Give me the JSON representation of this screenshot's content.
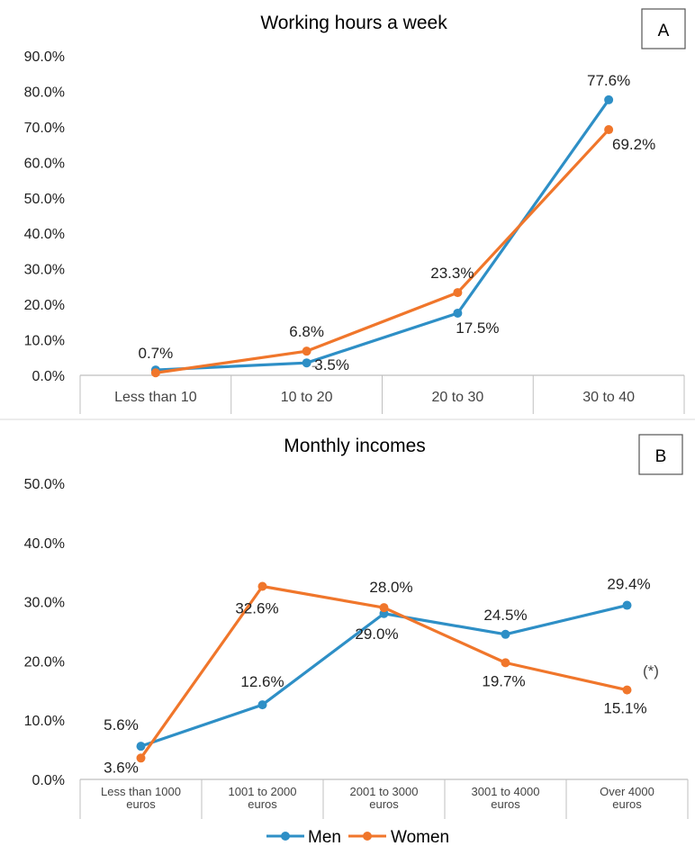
{
  "colors": {
    "men": "#2E8FC6",
    "women": "#F0762B",
    "axis": "#BFBFBF",
    "text": "#222222"
  },
  "legend": {
    "position": "bottom",
    "items": [
      {
        "label": "Men"
      },
      {
        "label": "Women"
      }
    ]
  },
  "chart_data": [
    {
      "type": "line",
      "title": "Working hours a week",
      "panel_label": "A",
      "categories": [
        "Less than 10",
        "10 to 20",
        "20 to 30",
        "30 to 40"
      ],
      "ylim": [
        0,
        90
      ],
      "yticks": [
        "0.0%",
        "10.0%",
        "20.0%",
        "30.0%",
        "40.0%",
        "50.0%",
        "60.0%",
        "70.0%",
        "80.0%",
        "90.0%"
      ],
      "grid": false,
      "series": [
        {
          "name": "Men",
          "values": [
            1.5,
            3.5,
            17.5,
            77.6
          ],
          "labels": [
            "",
            "3.5%",
            "17.5%",
            "77.6%"
          ]
        },
        {
          "name": "Women",
          "values": [
            0.7,
            6.8,
            23.3,
            69.2
          ],
          "labels": [
            "0.7%",
            "6.8%",
            "23.3%",
            "69.2%"
          ]
        }
      ]
    },
    {
      "type": "line",
      "title": "Monthly incomes",
      "panel_label": "B",
      "note": "(*)",
      "categories": [
        "Less than 1000 euros",
        "1001 to 2000 euros",
        "2001 to 3000 euros",
        "3001 to 4000 euros",
        "Over 4000 euros"
      ],
      "ylim": [
        0,
        50
      ],
      "yticks": [
        "0.0%",
        "10.0%",
        "20.0%",
        "30.0%",
        "40.0%",
        "50.0%"
      ],
      "grid": false,
      "series": [
        {
          "name": "Men",
          "values": [
            5.6,
            12.6,
            28.0,
            24.5,
            29.4
          ],
          "labels": [
            "5.6%",
            "12.6%",
            "28.0%",
            "24.5%",
            "29.4%"
          ]
        },
        {
          "name": "Women",
          "values": [
            3.6,
            32.6,
            29.0,
            19.7,
            15.1
          ],
          "labels": [
            "3.6%",
            "32.6%",
            "29.0%",
            "19.7%",
            "15.1%"
          ]
        }
      ]
    }
  ]
}
